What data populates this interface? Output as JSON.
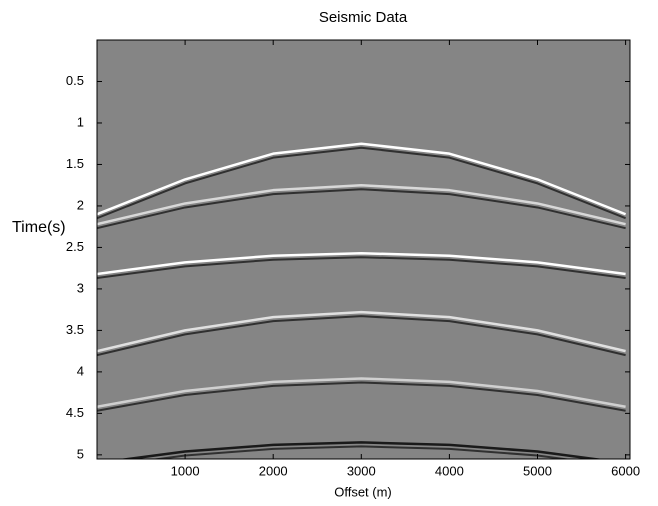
{
  "chart_data": {
    "type": "line",
    "title": "Seismic Data",
    "x_label": "Offset (m)",
    "y_label": "Time(s)",
    "x": [
      0,
      1000,
      2000,
      3000,
      4000,
      5000,
      6000
    ],
    "series": [
      {
        "color": "#ffffff",
        "values": [
          2.1,
          1.68,
          1.37,
          1.25,
          1.37,
          1.68,
          2.1
        ]
      },
      {
        "color": "#d8d8d8",
        "values": [
          2.22,
          1.97,
          1.81,
          1.75,
          1.81,
          1.97,
          2.22
        ]
      },
      {
        "color": "#ffffff",
        "values": [
          2.82,
          2.68,
          2.6,
          2.57,
          2.6,
          2.68,
          2.82
        ]
      },
      {
        "color": "#e0e0e0",
        "values": [
          3.75,
          3.5,
          3.34,
          3.28,
          3.34,
          3.5,
          3.75
        ]
      },
      {
        "color": "#d0d0d0",
        "values": [
          4.42,
          4.23,
          4.12,
          4.08,
          4.12,
          4.23,
          4.42
        ]
      },
      {
        "color": "#1a1a1a",
        "values": [
          5.1,
          4.96,
          4.88,
          4.85,
          4.88,
          4.96,
          5.1
        ]
      }
    ],
    "xlim": [
      0,
      6050
    ],
    "ylim": [
      0,
      5.05
    ],
    "y_reversed": true,
    "xticks": [
      1000,
      2000,
      3000,
      4000,
      5000,
      6000
    ],
    "yticks": [
      0.5,
      1,
      1.5,
      2,
      2.5,
      3,
      3.5,
      4,
      4.5,
      5
    ],
    "background": "#858585"
  }
}
